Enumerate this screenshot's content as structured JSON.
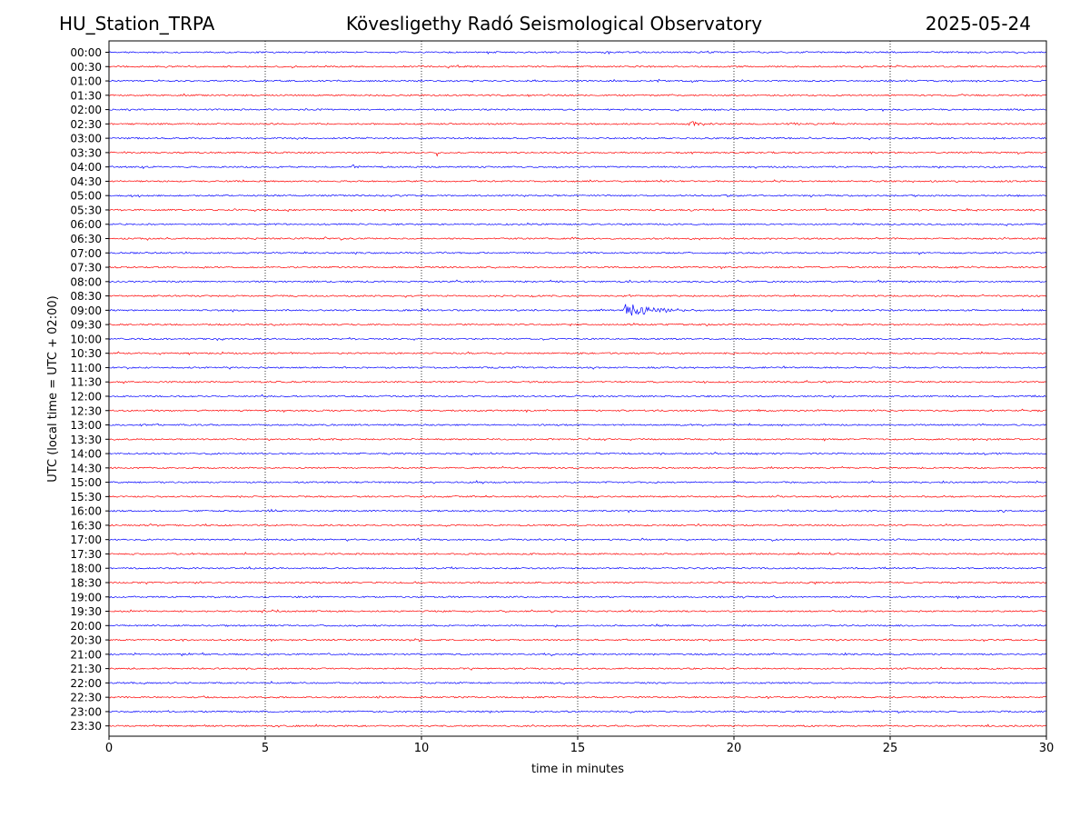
{
  "header": {
    "station": "HU_Station_TRPA",
    "title": "Kövesligethy Radó Seismological Observatory",
    "date": "2025-05-24"
  },
  "chart_data": {
    "type": "line",
    "title": "Kövesligethy Radó Seismological Observatory",
    "xlabel": "time in minutes",
    "ylabel": "UTC (local time = UTC + 02:00)",
    "xlim": [
      0,
      30
    ],
    "x_ticks": [
      0,
      5,
      10,
      15,
      20,
      25,
      30
    ],
    "vertical_grid": "dotted at each x tick",
    "rows": [
      "00:00",
      "00:30",
      "01:00",
      "01:30",
      "02:00",
      "02:30",
      "03:00",
      "03:30",
      "04:00",
      "04:30",
      "05:00",
      "05:30",
      "06:00",
      "06:30",
      "07:00",
      "07:30",
      "08:00",
      "08:30",
      "09:00",
      "09:30",
      "10:00",
      "10:30",
      "11:00",
      "11:30",
      "12:00",
      "12:30",
      "13:00",
      "13:30",
      "14:00",
      "14:30",
      "15:00",
      "15:30",
      "16:00",
      "16:30",
      "17:00",
      "17:30",
      "18:00",
      "18:30",
      "19:00",
      "19:30",
      "20:00",
      "20:30",
      "21:00",
      "21:30",
      "22:00",
      "22:30",
      "23:00",
      "23:30"
    ],
    "row_colors": [
      "#0000ff",
      "#ff0000"
    ],
    "events": [
      {
        "row": "02:30",
        "start_min": 18.6,
        "duration_min": 1.2,
        "amplitude": 3
      },
      {
        "row": "02:30",
        "start_min": 21.7,
        "duration_min": 1.0,
        "amplitude": 2
      },
      {
        "row": "03:30",
        "start_min": 10.5,
        "duration_min": 0.15,
        "amplitude": 9
      },
      {
        "row": "04:00",
        "start_min": 7.8,
        "duration_min": 0.4,
        "amplitude": 2.5
      },
      {
        "row": "09:00",
        "start_min": 16.5,
        "duration_min": 2.5,
        "amplitude": 9
      },
      {
        "row": "11:00",
        "start_min": 13.0,
        "duration_min": 0.2,
        "amplitude": 4
      },
      {
        "row": "14:00",
        "start_min": 28.0,
        "duration_min": 1.0,
        "amplitude": 2
      },
      {
        "row": "15:30",
        "start_min": 23.1,
        "duration_min": 0.3,
        "amplitude": 2
      }
    ]
  }
}
